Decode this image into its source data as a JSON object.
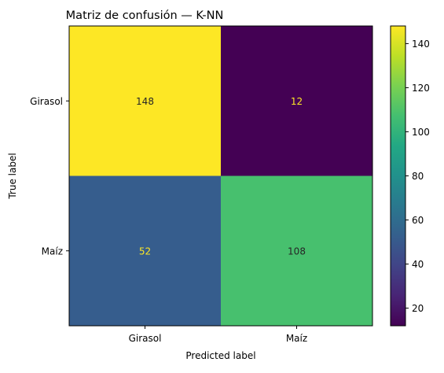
{
  "chart_data": {
    "type": "heatmap",
    "title": "Matriz de confusión — K-NN",
    "xlabel": "Predicted label",
    "ylabel": "True label",
    "x_categories": [
      "Girasol",
      "Maíz"
    ],
    "y_categories": [
      "Girasol",
      "Maíz"
    ],
    "matrix": [
      [
        148,
        12
      ],
      [
        52,
        108
      ]
    ],
    "colormap": "viridis",
    "colorbar": {
      "min": 12,
      "max": 148,
      "ticks": [
        20,
        40,
        60,
        80,
        100,
        120,
        140
      ]
    },
    "text_color_light": "#fde725",
    "text_color_dark": "#262626"
  }
}
